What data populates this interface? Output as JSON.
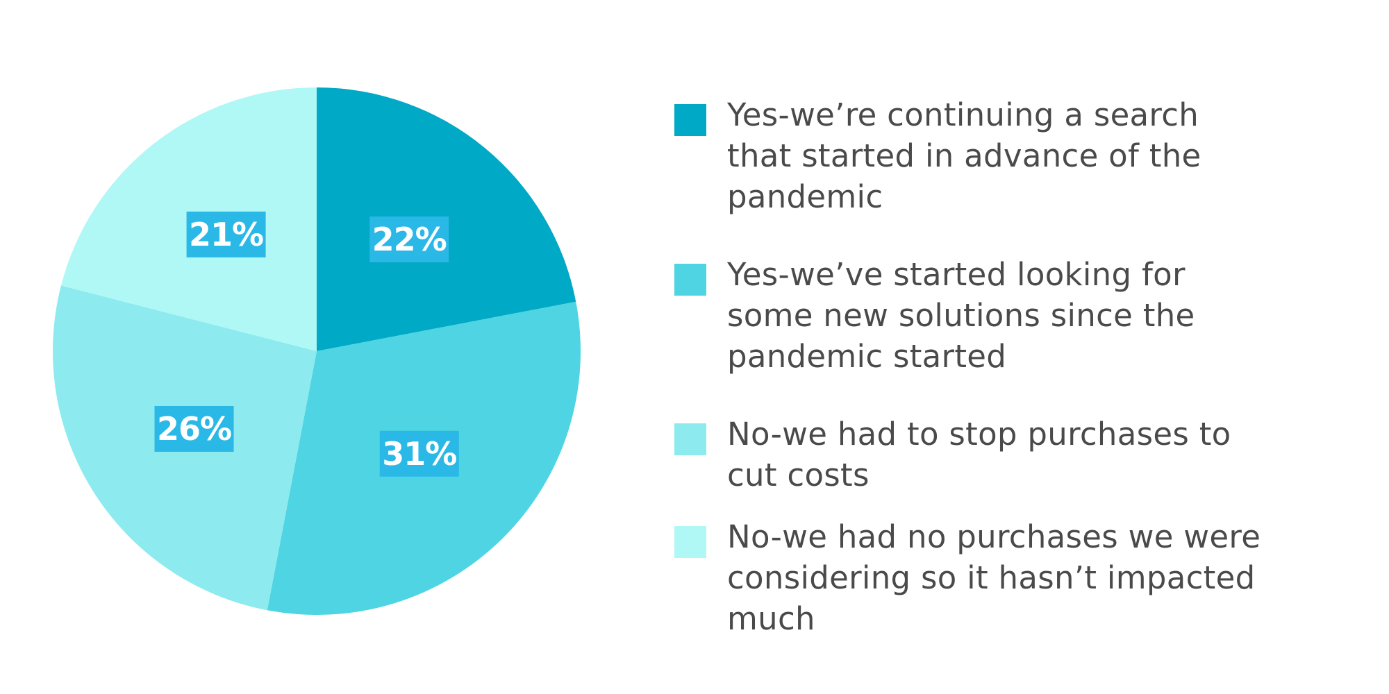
{
  "chart_data": {
    "type": "pie",
    "title": "",
    "start_angle_deg": 0,
    "direction": "clockwise",
    "legend_position": "right",
    "slices": [
      {
        "label": "Yes-we’re continuing a search that started in advance of the pandemic",
        "value": 22,
        "display": "22%",
        "color": "#00a9c6"
      },
      {
        "label": "Yes-we’ve started looking for some new solutions since the pandemic started",
        "value": 31,
        "display": "31%",
        "color": "#4ed4e2"
      },
      {
        "label": "No-we had to stop purchases to cut costs",
        "value": 26,
        "display": "26%",
        "color": "#8deaef"
      },
      {
        "label": "No-we had no purchases we were considering so it hasn’t impacted much",
        "value": 21,
        "display": "21%",
        "color": "#aff8f5"
      }
    ]
  }
}
